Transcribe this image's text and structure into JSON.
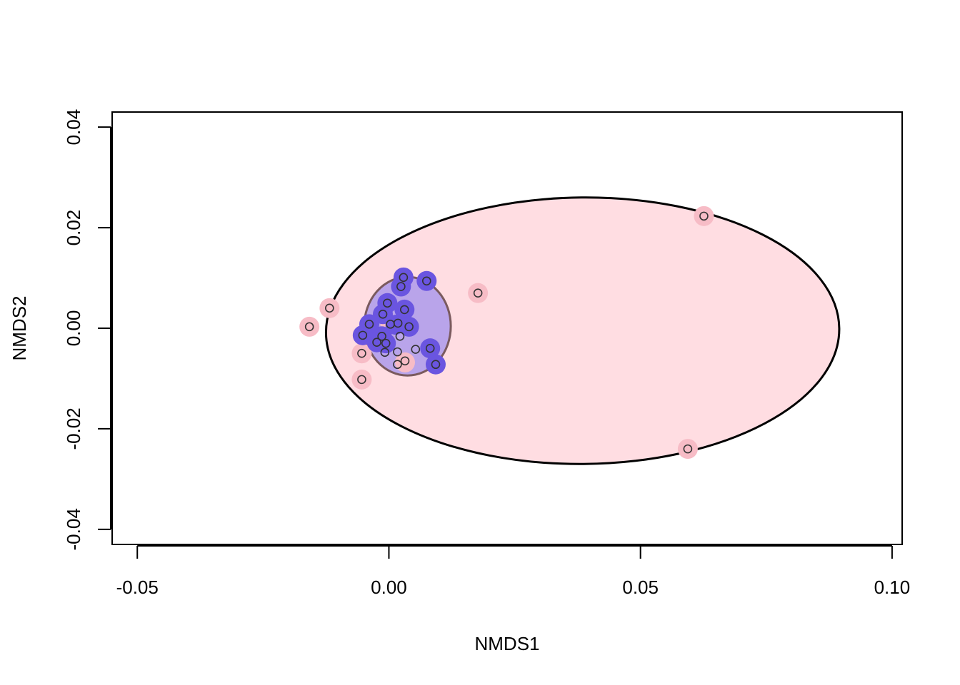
{
  "chart_data": {
    "type": "scatter",
    "title": "",
    "xlabel": "NMDS1",
    "ylabel": "NMDS2",
    "xlim": [
      -0.055,
      0.102
    ],
    "ylim": [
      -0.043,
      0.043
    ],
    "x_ticks": [
      -0.05,
      0.0,
      0.05,
      0.1
    ],
    "x_tick_labels": [
      "-0.05",
      "0.00",
      "0.05",
      "0.10"
    ],
    "y_ticks": [
      -0.04,
      -0.02,
      0.0,
      0.02,
      0.04
    ],
    "y_tick_labels": [
      "-0.04",
      "-0.02",
      "0.00",
      "0.02",
      "0.04"
    ],
    "grid": false,
    "legend": "none",
    "colors": {
      "group1_fill": "#ffdde2",
      "group1_point": "#f7bcc6",
      "group1_outline": "#000000",
      "group2_fill": "#b9a4ea",
      "group2_point": "#6a55e0",
      "group2_outline": "#7a5a5e",
      "point_stroke": "#333333"
    },
    "ellipses": [
      {
        "group": 1,
        "cx": 0.0385,
        "cy": -0.0005,
        "rx": 0.051,
        "ry": 0.0265,
        "angle": 0.5
      },
      {
        "group": 2,
        "cx": 0.0037,
        "cy": 0.0004,
        "rx": 0.0086,
        "ry": 0.0098,
        "angle": 0
      }
    ],
    "series": [
      {
        "group": 1,
        "points": [
          [
            -0.0158,
            0.0003
          ],
          [
            -0.0118,
            0.004
          ],
          [
            -0.0054,
            -0.005
          ],
          [
            -0.0054,
            -0.0102
          ],
          [
            0.0177,
            0.007
          ],
          [
            0.0626,
            0.0223
          ],
          [
            0.0594,
            -0.024
          ],
          [
            0.0032,
            -0.0068
          ],
          [
            0.0003,
            0.0008
          ]
        ]
      },
      {
        "group": 2,
        "points": [
          [
            0.0029,
            0.0101
          ],
          [
            0.0075,
            0.0094
          ],
          [
            0.0024,
            0.0083
          ],
          [
            -0.0003,
            0.005
          ],
          [
            0.0031,
            0.0037
          ],
          [
            -0.0012,
            0.0028
          ],
          [
            -0.0039,
            0.0008
          ],
          [
            0.004,
            0.0003
          ],
          [
            -0.0052,
            -0.0014
          ],
          [
            -0.0014,
            -0.0016
          ],
          [
            -0.0024,
            -0.0028
          ],
          [
            0.0082,
            -0.004
          ],
          [
            0.0093,
            -0.0072
          ],
          [
            -0.0006,
            -0.003
          ],
          [
            0.0013,
            0.0007
          ]
        ]
      }
    ],
    "open_markers": [
      [
        -0.0158,
        0.0003
      ],
      [
        -0.0118,
        0.004
      ],
      [
        -0.0054,
        -0.005
      ],
      [
        -0.0054,
        -0.0102
      ],
      [
        0.0177,
        0.007
      ],
      [
        0.0626,
        0.0223
      ],
      [
        0.0594,
        -0.024
      ],
      [
        0.0029,
        0.0101
      ],
      [
        0.0075,
        0.0094
      ],
      [
        0.0024,
        0.0083
      ],
      [
        -0.0003,
        0.005
      ],
      [
        0.0031,
        0.0037
      ],
      [
        -0.0012,
        0.0028
      ],
      [
        -0.0039,
        0.0008
      ],
      [
        0.004,
        0.0003
      ],
      [
        0.0003,
        0.0008
      ],
      [
        0.0018,
        0.001
      ],
      [
        -0.0052,
        -0.0014
      ],
      [
        -0.0014,
        -0.0016
      ],
      [
        0.0022,
        -0.0016
      ],
      [
        -0.0024,
        -0.0028
      ],
      [
        -0.0006,
        -0.003
      ],
      [
        0.0082,
        -0.004
      ],
      [
        0.0053,
        -0.0042
      ],
      [
        -0.0008,
        -0.0048
      ],
      [
        0.0017,
        -0.0047
      ],
      [
        0.0032,
        -0.0065
      ],
      [
        0.0017,
        -0.0072
      ],
      [
        0.0093,
        -0.0072
      ]
    ]
  }
}
